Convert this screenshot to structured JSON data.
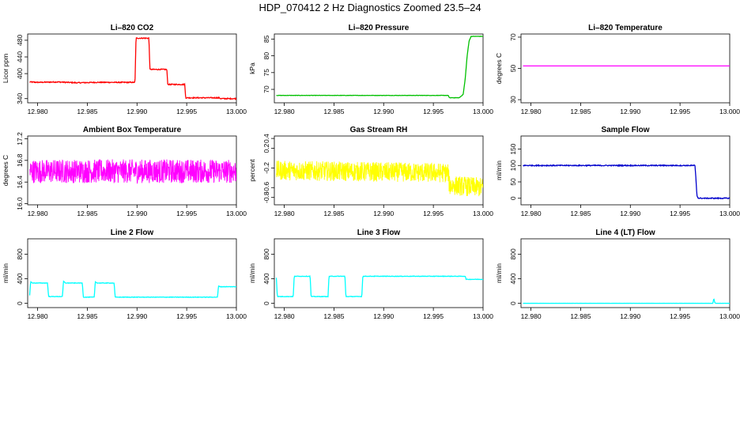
{
  "page": {
    "title": "HDP_070412  2 Hz Diagnostics Zoomed 23.5–24"
  },
  "chart_data": [
    {
      "type": "line",
      "title": "Li–820 CO2",
      "ylabel": "Licor ppm",
      "color": "#ff0000",
      "xlim": [
        12.979,
        13.0
      ],
      "ylim": [
        330,
        495
      ],
      "x_ticks": [
        "12.980",
        "12.985",
        "12.990",
        "12.995",
        "13.000"
      ],
      "x_tick_values": [
        12.98,
        12.985,
        12.99,
        12.995,
        13.0
      ],
      "y_ticks": [
        "340",
        "400",
        "440",
        "480"
      ],
      "y_tick_values": [
        340,
        400,
        440,
        480
      ],
      "series": [
        {
          "x": [
            12.9792,
            12.98,
            12.982,
            12.984,
            12.986,
            12.988,
            12.9898,
            12.9899,
            12.9912,
            12.9913,
            12.993,
            12.9931,
            12.9948,
            12.9949,
            12.9965,
            12.9983,
            12.9984,
            13.0
          ],
          "y": [
            380,
            379,
            380,
            378,
            379,
            379,
            379,
            485,
            485,
            410,
            410,
            374,
            374,
            342,
            342,
            342,
            340,
            340
          ],
          "noise": 1.2
        }
      ]
    },
    {
      "type": "line",
      "title": "Li–820 Pressure",
      "ylabel": "kPa",
      "color": "#00c000",
      "xlim": [
        12.979,
        13.0
      ],
      "ylim": [
        66,
        86.5
      ],
      "x_ticks": [
        "12.980",
        "12.985",
        "12.990",
        "12.995",
        "13.000"
      ],
      "x_tick_values": [
        12.98,
        12.985,
        12.99,
        12.995,
        13.0
      ],
      "y_ticks": [
        "70",
        "75",
        "80",
        "85"
      ],
      "y_tick_values": [
        70,
        75,
        80,
        85
      ],
      "series": [
        {
          "x": [
            12.9792,
            12.9965,
            12.9966,
            12.9976,
            12.998,
            12.9982,
            12.9984,
            12.9986,
            12.9988,
            13.0
          ],
          "y": [
            68.2,
            68.2,
            67.5,
            67.5,
            68.5,
            73,
            80,
            84.5,
            85.8,
            85.8
          ],
          "noise": 0.05
        }
      ]
    },
    {
      "type": "line",
      "title": "Li–820 Temperature",
      "ylabel": "degrees C",
      "color": "#ff00ff",
      "xlim": [
        12.979,
        13.0
      ],
      "ylim": [
        28,
        72
      ],
      "x_ticks": [
        "12.980",
        "12.985",
        "12.990",
        "12.995",
        "13.000"
      ],
      "x_tick_values": [
        12.98,
        12.985,
        12.99,
        12.995,
        13.0
      ],
      "y_ticks": [
        "30",
        "50",
        "70"
      ],
      "y_tick_values": [
        30,
        50,
        70
      ],
      "series": [
        {
          "x": [
            12.9792,
            13.0
          ],
          "y": [
            51.6,
            51.6
          ],
          "noise": 0
        }
      ]
    },
    {
      "type": "line",
      "title": "Ambient Box Temperature",
      "ylabel": "degrees C",
      "color": "#ff00ff",
      "xlim": [
        12.979,
        13.0
      ],
      "ylim": [
        15.98,
        17.25
      ],
      "x_ticks": [
        "12.980",
        "12.985",
        "12.990",
        "12.995",
        "13.000"
      ],
      "x_tick_values": [
        12.98,
        12.985,
        12.99,
        12.995,
        13.0
      ],
      "y_ticks": [
        "16.0",
        "16.4",
        "16.8",
        "17.2"
      ],
      "y_tick_values": [
        16.0,
        16.4,
        16.8,
        17.2
      ],
      "series": [
        {
          "x": [
            12.9792,
            13.0
          ],
          "y": [
            16.6,
            16.6
          ],
          "noise": 0.22,
          "noisy": true
        }
      ]
    },
    {
      "type": "line",
      "title": "Gas Stream RH",
      "ylabel": "percent",
      "color": "#ffff00",
      "xlim": [
        12.979,
        13.0
      ],
      "ylim": [
        -0.95,
        0.45
      ],
      "x_ticks": [
        "12.980",
        "12.985",
        "12.990",
        "12.995",
        "13.000"
      ],
      "x_tick_values": [
        12.98,
        12.985,
        12.99,
        12.995,
        13.0
      ],
      "y_ticks": [
        "-0.8",
        "-0.6",
        "-0.2",
        "0.2",
        "0.4"
      ],
      "y_tick_values": [
        -0.8,
        -0.6,
        -0.2,
        0.2,
        0.4
      ],
      "series": [
        {
          "x": [
            12.9792,
            12.9965,
            12.9966,
            13.0
          ],
          "y": [
            -0.25,
            -0.3,
            -0.55,
            -0.6
          ],
          "noise": 0.2,
          "noisy": true
        }
      ]
    },
    {
      "type": "line",
      "title": "Sample Flow",
      "ylabel": "ml/min",
      "color": "#0000cc",
      "xlim": [
        12.979,
        13.0
      ],
      "ylim": [
        -20,
        190
      ],
      "x_ticks": [
        "12.980",
        "12.985",
        "12.990",
        "12.995",
        "13.000"
      ],
      "x_tick_values": [
        12.98,
        12.985,
        12.99,
        12.995,
        13.0
      ],
      "y_ticks": [
        "0",
        "50",
        "100",
        "150"
      ],
      "y_tick_values": [
        0,
        50,
        100,
        150
      ],
      "series": [
        {
          "x": [
            12.9792,
            12.9965,
            12.9966,
            12.9967,
            12.9968,
            12.9969,
            13.0
          ],
          "y": [
            100,
            100,
            60,
            8,
            2,
            0,
            0
          ],
          "noise": 1.5
        }
      ]
    },
    {
      "type": "line",
      "title": "Line 2 Flow",
      "ylabel": "ml/min",
      "color": "#00ffff",
      "xlim": [
        12.979,
        13.0
      ],
      "ylim": [
        -70,
        1050
      ],
      "x_ticks": [
        "12.980",
        "12.985",
        "12.990",
        "12.995",
        "13.000"
      ],
      "x_tick_values": [
        12.98,
        12.985,
        12.99,
        12.995,
        13.0
      ],
      "y_ticks": [
        "0",
        "400",
        "800"
      ],
      "y_tick_values": [
        0,
        400,
        800
      ],
      "series": [
        {
          "x": [
            12.9792,
            12.9793,
            12.9795,
            12.981,
            12.9811,
            12.9825,
            12.9826,
            12.9828,
            12.9845,
            12.9846,
            12.9857,
            12.9858,
            12.986,
            12.9877,
            12.9878,
            12.9981,
            12.9982,
            12.9984,
            13.0
          ],
          "y": [
            130,
            350,
            330,
            330,
            110,
            110,
            360,
            330,
            330,
            100,
            100,
            350,
            330,
            330,
            100,
            100,
            280,
            270,
            270
          ],
          "noise": 4
        }
      ]
    },
    {
      "type": "line",
      "title": "Line 3 Flow",
      "ylabel": "ml/min",
      "color": "#00ffff",
      "xlim": [
        12.979,
        13.0
      ],
      "ylim": [
        -70,
        1050
      ],
      "x_ticks": [
        "12.980",
        "12.985",
        "12.990",
        "12.995",
        "13.000"
      ],
      "x_tick_values": [
        12.98,
        12.985,
        12.99,
        12.995,
        13.0
      ],
      "y_ticks": [
        "0",
        "400",
        "800"
      ],
      "y_tick_values": [
        0,
        400,
        800
      ],
      "series": [
        {
          "x": [
            12.9792,
            12.9793,
            12.9794,
            12.9809,
            12.981,
            12.9826,
            12.9827,
            12.9844,
            12.9845,
            12.9861,
            12.9862,
            12.9878,
            12.9879,
            12.9982,
            12.9983,
            13.0
          ],
          "y": [
            420,
            110,
            110,
            110,
            440,
            440,
            110,
            110,
            440,
            440,
            110,
            110,
            440,
            440,
            390,
            390
          ],
          "noise": 4
        }
      ]
    },
    {
      "type": "line",
      "title": "Line 4 (LT) Flow",
      "ylabel": "ml/min",
      "color": "#00ffff",
      "xlim": [
        12.979,
        13.0
      ],
      "ylim": [
        -70,
        1050
      ],
      "x_ticks": [
        "12.980",
        "12.985",
        "12.990",
        "12.995",
        "13.000"
      ],
      "x_tick_values": [
        12.98,
        12.985,
        12.99,
        12.995,
        13.0
      ],
      "y_ticks": [
        "0",
        "400",
        "800"
      ],
      "y_tick_values": [
        0,
        400,
        800
      ],
      "series": [
        {
          "x": [
            12.9792,
            12.9982,
            12.9983,
            12.9984,
            12.9985,
            12.9986,
            13.0
          ],
          "y": [
            0,
            0,
            0,
            80,
            10,
            0,
            0
          ],
          "noise": 0.5
        }
      ]
    }
  ]
}
